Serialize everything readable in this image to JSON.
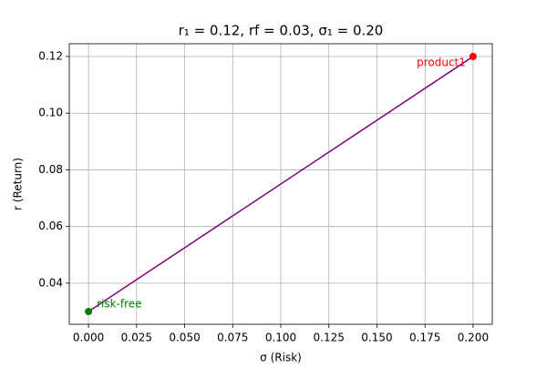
{
  "chart_data": {
    "type": "line",
    "title": "r₁ = 0.12,  rf = 0.03,  σ₁ = 0.20",
    "x_label": "σ (Risk)",
    "y_label": "r (Return)",
    "x": [
      0,
      0.2
    ],
    "series": [
      {
        "color": "#800080",
        "values": [
          0.03,
          0.12
        ]
      }
    ],
    "points": [
      {
        "label": "risk-free",
        "x": 0,
        "y": 0.03,
        "color": "green"
      },
      {
        "label": "product1",
        "x": 0.2,
        "y": 0.12,
        "color": "red"
      }
    ],
    "xlim": [
      -0.01,
      0.21
    ],
    "ylim": [
      0.0255,
      0.1245
    ],
    "xticks": [
      {
        "value": 0,
        "label": "0.000"
      },
      {
        "value": 0.025,
        "label": "0.025"
      },
      {
        "value": 0.05,
        "label": "0.050"
      },
      {
        "value": 0.075,
        "label": "0.075"
      },
      {
        "value": 0.1,
        "label": "0.100"
      },
      {
        "value": 0.125,
        "label": "0.125"
      },
      {
        "value": 0.15,
        "label": "0.150"
      },
      {
        "value": 0.175,
        "label": "0.175"
      },
      {
        "value": 0.2,
        "label": "0.200"
      }
    ],
    "yticks": [
      {
        "value": 0.04,
        "label": "0.04"
      },
      {
        "value": 0.06,
        "label": "0.06"
      },
      {
        "value": 0.08,
        "label": "0.08"
      },
      {
        "value": 0.1,
        "label": "0.10"
      },
      {
        "value": 0.12,
        "label": "0.12"
      }
    ],
    "grid": true
  }
}
